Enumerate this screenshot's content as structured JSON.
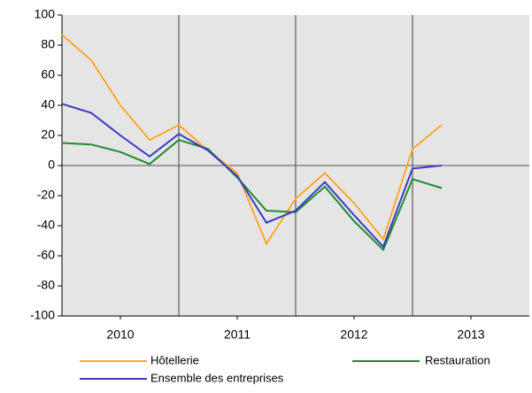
{
  "chart_data": {
    "type": "line",
    "x": [
      2010,
      2010.25,
      2010.5,
      2010.75,
      2011,
      2011.25,
      2011.5,
      2011.75,
      2012,
      2012.25,
      2012.5,
      2012.75,
      2013,
      2013.25
    ],
    "series": [
      {
        "name": "Hôtellerie",
        "color": "#ffa92e",
        "values": [
          87,
          70,
          40,
          17,
          27,
          10,
          -5,
          -52,
          -22,
          -5,
          -25,
          -49,
          11,
          27
        ]
      },
      {
        "name": "Restauration",
        "color": "#1e8c2e",
        "values": [
          15,
          14,
          9,
          1,
          17,
          11,
          -8,
          -30,
          -31,
          -14,
          -37,
          -56,
          -9,
          -15
        ]
      },
      {
        "name": "Ensemble des entreprises",
        "color": "#3b3bc4",
        "values": [
          41,
          35,
          20,
          6,
          21,
          10,
          -7,
          -38,
          -30,
          -11,
          -33,
          -54,
          -2,
          0
        ]
      }
    ],
    "xlim": [
      2010,
      2014
    ],
    "xticks": [
      {
        "value": 2010.5,
        "label": "2010"
      },
      {
        "value": 2011.5,
        "label": "2011"
      },
      {
        "value": 2012.5,
        "label": "2012"
      },
      {
        "value": 2013.5,
        "label": "2013"
      }
    ],
    "xgrid": [
      2011,
      2012,
      2013
    ],
    "ylim": [
      -100,
      100
    ],
    "yticks": [
      -100,
      -80,
      -60,
      -40,
      -20,
      0,
      20,
      40,
      60,
      80,
      100
    ]
  }
}
